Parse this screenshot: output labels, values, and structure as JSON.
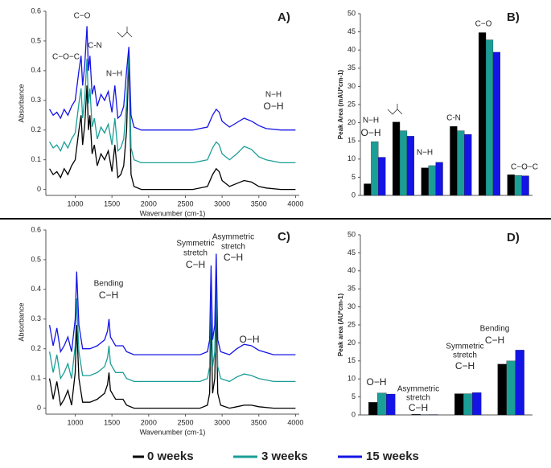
{
  "chart_data": [
    {
      "type": "line",
      "panel_label": "A)",
      "xlabel": "Wavenumber (cm-1)",
      "ylabel": "Absorbance",
      "x": [
        650,
        700,
        750,
        800,
        850,
        900,
        950,
        1000,
        1050,
        1080,
        1100,
        1130,
        1160,
        1180,
        1200,
        1230,
        1260,
        1300,
        1350,
        1400,
        1450,
        1500,
        1540,
        1580,
        1620,
        1660,
        1700,
        1730,
        1760,
        1800,
        1900,
        2000,
        2200,
        2400,
        2600,
        2800,
        2870,
        2920,
        2960,
        3000,
        3100,
        3200,
        3300,
        3400,
        3500,
        3600,
        3800,
        4000
      ],
      "xlim": [
        600,
        4050
      ],
      "ylim": [
        -0.02,
        0.6
      ],
      "xticks": [
        1000,
        1500,
        2000,
        2500,
        3000,
        3500,
        4000
      ],
      "yticks": [
        0,
        0.1,
        0.2,
        0.3,
        0.4,
        0.5,
        0.6
      ],
      "series": [
        {
          "name": "0 weeks",
          "color": "#000000",
          "values": [
            0.07,
            0.05,
            0.06,
            0.04,
            0.07,
            0.05,
            0.08,
            0.1,
            0.2,
            0.25,
            0.15,
            0.22,
            0.35,
            0.2,
            0.25,
            0.12,
            0.15,
            0.08,
            0.12,
            0.1,
            0.13,
            0.06,
            0.15,
            0.04,
            0.05,
            0.08,
            0.2,
            0.46,
            0.05,
            0.01,
            0,
            0,
            0,
            0,
            0,
            0.01,
            0.05,
            0.07,
            0.06,
            0.03,
            0.01,
            0.02,
            0.03,
            0.025,
            0.01,
            0.005,
            0,
            0
          ]
        },
        {
          "name": "3 weeks",
          "color": "#1a9e96",
          "values": [
            0.16,
            0.14,
            0.15,
            0.13,
            0.16,
            0.14,
            0.17,
            0.19,
            0.29,
            0.34,
            0.24,
            0.31,
            0.44,
            0.29,
            0.34,
            0.21,
            0.24,
            0.17,
            0.21,
            0.19,
            0.22,
            0.15,
            0.24,
            0.13,
            0.14,
            0.17,
            0.29,
            0.47,
            0.14,
            0.1,
            0.09,
            0.09,
            0.09,
            0.09,
            0.09,
            0.1,
            0.14,
            0.16,
            0.15,
            0.12,
            0.1,
            0.12,
            0.145,
            0.135,
            0.11,
            0.1,
            0.09,
            0.09
          ]
        },
        {
          "name": "15 weeks",
          "color": "#1414e6",
          "values": [
            0.27,
            0.25,
            0.26,
            0.24,
            0.27,
            0.25,
            0.28,
            0.3,
            0.4,
            0.45,
            0.35,
            0.42,
            0.55,
            0.4,
            0.45,
            0.32,
            0.35,
            0.28,
            0.32,
            0.3,
            0.33,
            0.26,
            0.35,
            0.24,
            0.25,
            0.28,
            0.4,
            0.48,
            0.25,
            0.21,
            0.2,
            0.2,
            0.2,
            0.2,
            0.2,
            0.21,
            0.25,
            0.27,
            0.26,
            0.23,
            0.21,
            0.225,
            0.24,
            0.23,
            0.215,
            0.205,
            0.2,
            0.2
          ]
        }
      ],
      "annotations": [
        "C−O",
        "C−O−C",
        "C-N",
        "N−H",
        "N−H",
        "O−H"
      ]
    },
    {
      "type": "bar",
      "panel_label": "B)",
      "ylabel": "Peak Area (mAU*cm-1)",
      "categories": [
        null,
        null,
        null,
        null,
        null,
        null
      ],
      "ylim": [
        0,
        50
      ],
      "yticks": [
        0,
        5,
        10,
        15,
        20,
        25,
        30,
        35,
        40,
        45,
        50
      ],
      "series": [
        {
          "color": "#000000",
          "values": [
            3.2,
            20.2,
            7.6,
            19,
            44.8,
            5.7
          ]
        },
        {
          "color": "#1a9e96",
          "values": [
            14.8,
            17.8,
            8.2,
            17.8,
            42.8,
            5.5
          ]
        },
        {
          "color": "#1414e6",
          "values": [
            10.5,
            16.3,
            9.1,
            16.8,
            39.4,
            5.4
          ]
        }
      ],
      "annotations": [
        "N−H",
        "O−H",
        "N−H",
        "C-N",
        "C−O",
        "C−O−C"
      ]
    },
    {
      "type": "line",
      "panel_label": "C)",
      "xlabel": "Wavenumber (cm-1)",
      "ylabel": "Absorbance",
      "x": [
        650,
        700,
        750,
        800,
        850,
        900,
        950,
        1000,
        1020,
        1050,
        1100,
        1200,
        1300,
        1400,
        1440,
        1460,
        1480,
        1550,
        1650,
        1700,
        1800,
        2000,
        2400,
        2700,
        2800,
        2830,
        2850,
        2870,
        2900,
        2920,
        2940,
        2980,
        3100,
        3200,
        3300,
        3400,
        3500,
        3700,
        4000
      ],
      "xlim": [
        600,
        4050
      ],
      "ylim": [
        -0.02,
        0.6
      ],
      "xticks": [
        1000,
        1500,
        2000,
        2500,
        3000,
        3500,
        4000
      ],
      "yticks": [
        0,
        0.1,
        0.2,
        0.3,
        0.4,
        0.5,
        0.6
      ],
      "series": [
        {
          "color": "#000000",
          "values": [
            0.1,
            0.03,
            0.09,
            0.01,
            0.03,
            0.06,
            0.01,
            0.12,
            0.28,
            0.1,
            0.02,
            0.02,
            0.03,
            0.05,
            0.08,
            0.12,
            0.06,
            0.03,
            0.03,
            0.01,
            0,
            0,
            0,
            0,
            0.01,
            0.05,
            0.3,
            0.05,
            0.1,
            0.34,
            0.05,
            0.01,
            0,
            0.005,
            0.01,
            0.01,
            0.005,
            0,
            0
          ]
        },
        {
          "color": "#1a9e96",
          "values": [
            0.19,
            0.12,
            0.18,
            0.1,
            0.12,
            0.15,
            0.1,
            0.21,
            0.37,
            0.19,
            0.11,
            0.11,
            0.12,
            0.14,
            0.17,
            0.21,
            0.15,
            0.12,
            0.12,
            0.1,
            0.09,
            0.09,
            0.09,
            0.09,
            0.1,
            0.14,
            0.39,
            0.14,
            0.19,
            0.43,
            0.14,
            0.1,
            0.09,
            0.105,
            0.115,
            0.11,
            0.1,
            0.09,
            0.09
          ]
        },
        {
          "color": "#1414e6",
          "values": [
            0.28,
            0.21,
            0.27,
            0.19,
            0.21,
            0.24,
            0.19,
            0.3,
            0.46,
            0.28,
            0.2,
            0.2,
            0.21,
            0.23,
            0.26,
            0.3,
            0.24,
            0.21,
            0.21,
            0.19,
            0.18,
            0.18,
            0.18,
            0.18,
            0.19,
            0.23,
            0.48,
            0.23,
            0.28,
            0.52,
            0.23,
            0.19,
            0.18,
            0.2,
            0.215,
            0.21,
            0.195,
            0.18,
            0.18
          ]
        }
      ],
      "annotations": [
        "Bending",
        "C−H",
        "Symmetric",
        "stretch",
        "C−H",
        "Asymmetric",
        "stretch",
        "C−H",
        "O−H"
      ]
    },
    {
      "type": "bar",
      "panel_label": "D)",
      "ylabel": "Peak area (AU*cm-1)",
      "categories": [
        null,
        null,
        null,
        null
      ],
      "ylim": [
        0,
        50
      ],
      "yticks": [
        0,
        5,
        10,
        15,
        20,
        25,
        30,
        35,
        40,
        45,
        50
      ],
      "series": [
        {
          "color": "#000000",
          "values": [
            3.5,
            0.2,
            5.9,
            14.1
          ]
        },
        {
          "color": "#1a9e96",
          "values": [
            6.1,
            0.1,
            5.9,
            15
          ]
        },
        {
          "color": "#1414e6",
          "values": [
            5.8,
            0.1,
            6.2,
            18
          ]
        }
      ],
      "annotations": [
        "O−H",
        "Asymmetric",
        "stretch",
        "C−H",
        "Symmetric",
        "stretch",
        "C−H",
        "Bending",
        "C−H"
      ]
    }
  ]
}
